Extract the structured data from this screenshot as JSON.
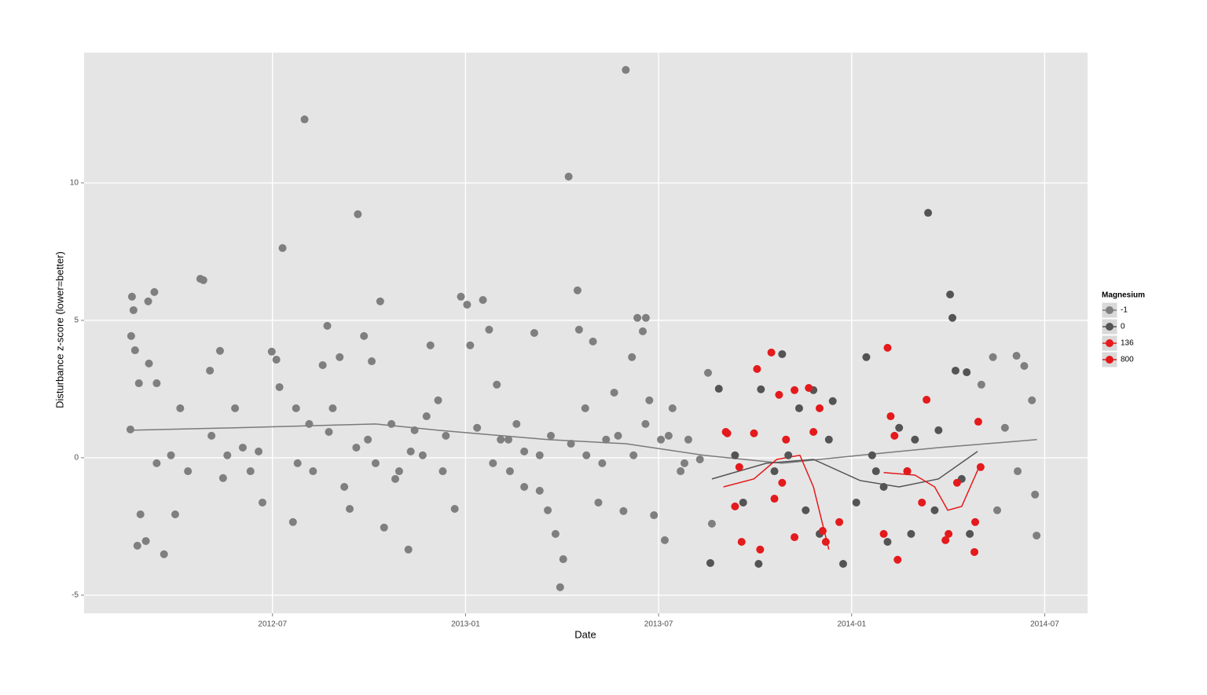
{
  "chart_data": {
    "type": "scatter",
    "x_label": "Date",
    "y_label": "Disturbance z-score (lower=better)",
    "legend_title": "Magnesium",
    "legend_position": "right",
    "grid": true,
    "xlim": [
      2012.012,
      2014.611
    ],
    "ylim": [
      -5.66,
      14.74
    ],
    "xticks": [
      {
        "value": 2012.5,
        "label": "2012-07"
      },
      {
        "value": 2013.0,
        "label": "2013-01"
      },
      {
        "value": 2013.5,
        "label": "2013-07"
      },
      {
        "value": 2014.0,
        "label": "2014-01"
      },
      {
        "value": 2014.5,
        "label": "2014-07"
      }
    ],
    "yticks": [
      -5,
      0,
      5,
      10
    ],
    "series": [
      {
        "name": "-1",
        "color": "#7f7f7f",
        "x": [
          2012.136,
          2012.14,
          2012.134,
          2012.144,
          2012.132,
          2012.154,
          2012.15,
          2012.158,
          2012.172,
          2012.178,
          2012.194,
          2012.18,
          2012.2,
          2012.219,
          2012.248,
          2012.237,
          2012.261,
          2012.313,
          2012.321,
          2012.338,
          2012.364,
          2012.372,
          2012.403,
          2012.423,
          2012.443,
          2012.474,
          2012.498,
          2012.51,
          2012.518,
          2012.526,
          2012.553,
          2012.561,
          2012.583,
          2012.595,
          2012.605,
          2012.63,
          2012.642,
          2012.656,
          2012.674,
          2012.7,
          2012.721,
          2012.737,
          2012.747,
          2012.757,
          2012.779,
          2012.789,
          2012.808,
          2012.828,
          2012.852,
          2012.868,
          2012.889,
          2012.909,
          2012.929,
          2012.941,
          2012.972,
          2012.988,
          2013.004,
          2013.012,
          2013.045,
          2013.061,
          2013.081,
          2013.091,
          2013.115,
          2013.132,
          2013.152,
          2013.178,
          2013.192,
          2013.213,
          2013.233,
          2013.245,
          2013.253,
          2013.267,
          2013.29,
          2013.294,
          2013.31,
          2013.33,
          2013.344,
          2013.364,
          2013.385,
          2013.409,
          2013.415,
          2013.431,
          2013.445,
          2013.467,
          2013.459,
          2013.476,
          2013.488,
          2013.506,
          2013.516,
          2013.536,
          2013.557,
          2013.577,
          2013.607,
          2013.628,
          2013.638,
          2014.336,
          2014.366,
          2014.397,
          2014.427,
          2014.447,
          2014.467,
          2014.479,
          2014.475,
          2014.377,
          2014.43,
          2012.2,
          2012.281,
          2012.342,
          2012.383,
          2012.464,
          2012.565,
          2012.646,
          2012.686,
          2012.717,
          2012.767,
          2012.818,
          2012.858,
          2012.899,
          2012.949,
          2013.03,
          2013.071,
          2013.111,
          2013.152,
          2013.192,
          2013.221,
          2013.273,
          2013.313,
          2013.354,
          2013.395,
          2013.435,
          2013.466,
          2013.526,
          2013.567
        ],
        "values": [
          5.86,
          5.37,
          4.43,
          3.91,
          1.03,
          2.71,
          -3.2,
          -2.06,
          -3.03,
          5.69,
          6.03,
          3.43,
          2.71,
          -3.51,
          -2.06,
          0.09,
          1.8,
          6.51,
          6.46,
          3.17,
          3.89,
          -0.74,
          1.8,
          0.37,
          -0.49,
          -1.63,
          3.86,
          3.57,
          2.57,
          7.63,
          -2.34,
          1.8,
          12.31,
          1.23,
          -0.49,
          3.37,
          4.8,
          1.8,
          3.66,
          -1.86,
          8.86,
          4.43,
          0.66,
          3.51,
          5.69,
          -2.54,
          1.23,
          -0.49,
          -3.34,
          1.0,
          0.09,
          4.09,
          2.09,
          -0.49,
          -1.86,
          5.86,
          5.57,
          4.09,
          5.74,
          4.66,
          2.66,
          0.66,
          -0.49,
          1.23,
          -1.06,
          4.54,
          0.09,
          -1.91,
          -2.77,
          -4.71,
          -3.69,
          10.23,
          6.09,
          4.66,
          1.8,
          4.23,
          -1.63,
          0.66,
          2.37,
          -1.94,
          14.11,
          3.66,
          5.09,
          5.09,
          4.6,
          2.09,
          -2.09,
          0.66,
          -3.0,
          1.8,
          -0.49,
          0.66,
          -0.06,
          3.09,
          -2.4,
          2.66,
          3.66,
          1.09,
          3.71,
          3.34,
          2.09,
          -2.83,
          -1.34,
          -1.91,
          -0.49,
          -0.2,
          -0.49,
          0.8,
          0.09,
          0.23,
          -0.2,
          0.94,
          -1.06,
          0.37,
          -0.2,
          -0.77,
          0.23,
          1.51,
          0.8,
          1.09,
          -0.2,
          0.66,
          0.23,
          -1.2,
          0.8,
          0.51,
          0.09,
          -0.2,
          0.8,
          0.09,
          1.23,
          0.8,
          -0.2
        ]
      },
      {
        "name": "0",
        "color": "#545454",
        "x": [
          2013.634,
          2013.656,
          2013.759,
          2013.765,
          2013.82,
          2013.864,
          2013.901,
          2013.951,
          2013.978,
          2014.038,
          2014.063,
          2014.093,
          2014.123,
          2014.154,
          2014.198,
          2014.225,
          2014.255,
          2014.261,
          2014.269,
          2014.298,
          2014.306,
          2013.719,
          2013.8,
          2013.881,
          2013.941,
          2014.012,
          2014.083,
          2014.164,
          2014.215,
          2014.285,
          2013.698,
          2013.836,
          2013.917,
          2014.053,
          2014.144
        ],
        "values": [
          -3.83,
          2.51,
          -3.86,
          2.49,
          3.77,
          1.8,
          2.46,
          2.06,
          -3.86,
          3.66,
          -0.49,
          -3.06,
          1.09,
          -2.77,
          8.91,
          1.0,
          5.94,
          5.09,
          3.17,
          3.11,
          -2.77,
          -1.63,
          -0.49,
          -1.91,
          0.66,
          -1.63,
          -1.06,
          0.66,
          -1.91,
          -0.77,
          0.09,
          0.09,
          -2.77,
          0.09,
          -0.49
        ]
      },
      {
        "name": "136",
        "color": "#e41a1c",
        "x": [
          2013.674,
          2013.755,
          2013.792,
          2013.812,
          2013.852,
          2013.889,
          2013.698,
          2013.715,
          2013.763,
          2013.8,
          2013.852,
          2013.933,
          2013.968,
          2014.093,
          2014.101,
          2014.119,
          2014.194,
          2014.243,
          2014.318,
          2014.328,
          2013.747,
          2013.82,
          2013.901,
          2014.111,
          2014.182,
          2014.273,
          2014.334
        ],
        "values": [
          0.94,
          3.23,
          3.83,
          2.29,
          2.46,
          2.54,
          -1.77,
          -3.06,
          -3.34,
          -1.49,
          -2.89,
          -3.06,
          -2.34,
          4.0,
          1.51,
          -3.71,
          2.11,
          -3.0,
          -3.43,
          1.31,
          0.89,
          -0.91,
          0.94,
          0.8,
          -1.63,
          -0.91,
          -0.34
        ]
      },
      {
        "name": "800",
        "color": "#e3191b",
        "x": [
          2013.678,
          2013.709,
          2013.83,
          2013.917,
          2014.083,
          2014.144,
          2014.251,
          2014.32,
          2013.925
        ],
        "values": [
          0.89,
          -0.34,
          0.66,
          1.8,
          -2.77,
          -0.49,
          -2.77,
          -2.34,
          -2.66
        ]
      }
    ],
    "trend_lines": [
      {
        "color": "#7a7a7a",
        "x": [
          2012.13,
          2012.403,
          2012.767,
          2012.929,
          2013.213,
          2013.415,
          2013.617,
          2013.82,
          2014.022,
          2014.225,
          2014.48
        ],
        "values": [
          1.0,
          1.09,
          1.23,
          1.0,
          0.66,
          0.51,
          0.09,
          -0.2,
          0.09,
          0.37,
          0.66
        ]
      },
      {
        "color": "#545454",
        "x": [
          2013.638,
          2013.779,
          2013.901,
          2014.022,
          2014.123,
          2014.225,
          2014.326
        ],
        "values": [
          -0.77,
          -0.2,
          -0.06,
          -0.83,
          -1.06,
          -0.77,
          0.23
        ]
      },
      {
        "color": "#e41a1c",
        "x": [
          2013.668,
          2013.747,
          2013.806,
          2013.866,
          2013.901,
          2013.941,
          null,
          2014.083,
          2014.164,
          2014.215,
          2014.249,
          2014.285,
          2014.33
        ],
        "values": [
          -1.06,
          -0.77,
          -0.06,
          0.09,
          -1.06,
          -3.34,
          null,
          -0.54,
          -0.63,
          -1.06,
          -1.91,
          -1.77,
          -0.34
        ]
      }
    ]
  }
}
